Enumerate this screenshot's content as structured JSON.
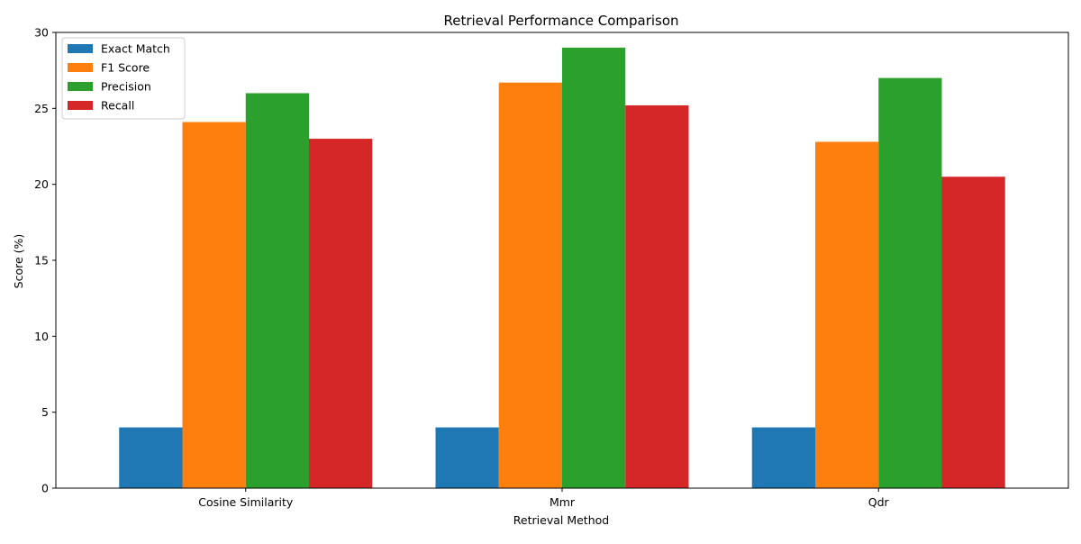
{
  "chart_data": {
    "type": "bar",
    "title": "Retrieval Performance Comparison",
    "xlabel": "Retrieval Method",
    "ylabel": "Score (%)",
    "categories": [
      "Cosine Similarity",
      "Mmr",
      "Qdr"
    ],
    "series": [
      {
        "name": "Exact Match",
        "color": "#1f77b4",
        "values": [
          4.0,
          4.0,
          4.0
        ]
      },
      {
        "name": "F1 Score",
        "color": "#ff7f0e",
        "values": [
          24.1,
          26.7,
          22.8
        ]
      },
      {
        "name": "Precision",
        "color": "#2ca02c",
        "values": [
          26.0,
          29.0,
          27.0
        ]
      },
      {
        "name": "Recall",
        "color": "#d62728",
        "values": [
          23.0,
          25.2,
          20.5
        ]
      }
    ],
    "ylim": [
      0,
      30
    ],
    "yticks": [
      0,
      5,
      10,
      15,
      20,
      25,
      30
    ],
    "grid": false,
    "legend_position": "top-left"
  }
}
